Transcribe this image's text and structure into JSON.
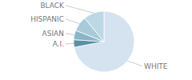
{
  "chart_data": {
    "type": "pie",
    "categories": [
      "WHITE",
      "A.I.",
      "ASIAN",
      "HISPANIC",
      "BLACK"
    ],
    "values": [
      72,
      4,
      5,
      8,
      11
    ],
    "colors": [
      "#d4e3ef",
      "#5b8fa8",
      "#8ab5c8",
      "#aacad8",
      "#bdd8e5"
    ]
  }
}
